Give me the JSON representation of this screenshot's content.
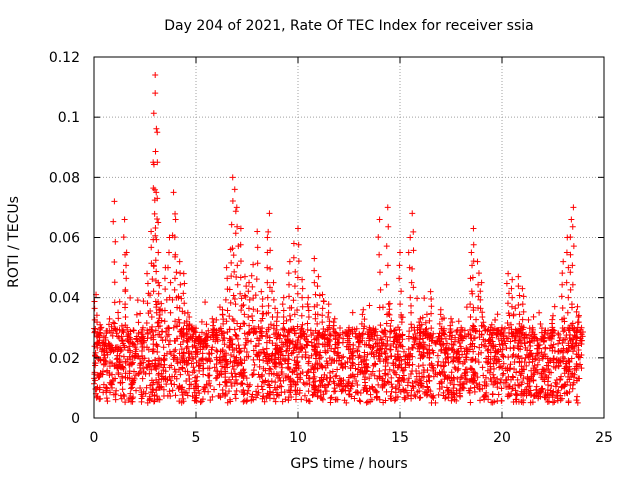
{
  "chart_data": {
    "type": "scatter",
    "title": "Day 204 of 2021, Rate Of TEC Index for receiver ssia",
    "xlabel": "GPS time / hours",
    "ylabel": "ROTI / TECUs",
    "xlim": [
      0,
      25
    ],
    "ylim": [
      0,
      0.12
    ],
    "xticks": [
      "0",
      "5",
      "10",
      "15",
      "20",
      "25"
    ],
    "yticks": [
      "0",
      "0.02",
      "0.04",
      "0.06",
      "0.08",
      "0.1",
      "0.12"
    ],
    "grid": true,
    "marker": "+",
    "color": "#ff0000",
    "series": [
      {
        "name": "ROTI",
        "x": [
          0.1,
          0.2,
          0.3,
          0.5,
          0.8,
          1.0,
          1.2,
          1.5,
          1.6,
          1.7,
          2.0,
          2.4,
          2.6,
          2.8,
          2.9,
          3.0,
          3.0,
          3.1,
          3.1,
          3.2,
          3.3,
          3.5,
          3.7,
          3.9,
          4.0,
          4.2,
          4.4,
          4.6,
          4.9,
          5.2,
          5.5,
          5.8,
          6.0,
          6.3,
          6.5,
          6.7,
          6.8,
          6.9,
          7.0,
          7.2,
          7.4,
          7.6,
          7.8,
          8.0,
          8.2,
          8.5,
          8.6,
          8.8,
          9.0,
          9.3,
          9.6,
          9.8,
          10.0,
          10.2,
          10.5,
          10.8,
          11.0,
          11.2,
          11.5,
          11.8,
          12.0,
          12.5,
          13.0,
          13.2,
          13.5,
          14.0,
          14.4,
          14.5,
          14.8,
          15.0,
          15.5,
          15.6,
          16.0,
          16.5,
          17.0,
          17.5,
          18.0,
          18.5,
          18.6,
          18.8,
          19.0,
          19.5,
          20.0,
          20.3,
          20.5,
          20.8,
          21.0,
          21.5,
          22.0,
          22.5,
          23.0,
          23.2,
          23.4,
          23.5,
          23.7,
          23.9
        ],
        "y": [
          0.041,
          0.025,
          0.031,
          0.018,
          0.022,
          0.072,
          0.015,
          0.066,
          0.055,
          0.028,
          0.02,
          0.03,
          0.048,
          0.062,
          0.085,
          0.108,
          0.114,
          0.095,
          0.073,
          0.044,
          0.038,
          0.05,
          0.06,
          0.075,
          0.066,
          0.052,
          0.048,
          0.035,
          0.03,
          0.026,
          0.028,
          0.033,
          0.029,
          0.036,
          0.05,
          0.056,
          0.08,
          0.076,
          0.07,
          0.063,
          0.047,
          0.045,
          0.051,
          0.062,
          0.042,
          0.06,
          0.068,
          0.045,
          0.035,
          0.04,
          0.052,
          0.058,
          0.063,
          0.046,
          0.04,
          0.053,
          0.047,
          0.041,
          0.035,
          0.033,
          0.025,
          0.03,
          0.028,
          0.036,
          0.03,
          0.066,
          0.07,
          0.038,
          0.028,
          0.055,
          0.06,
          0.068,
          0.033,
          0.042,
          0.036,
          0.033,
          0.03,
          0.055,
          0.063,
          0.052,
          0.045,
          0.031,
          0.03,
          0.048,
          0.046,
          0.047,
          0.043,
          0.03,
          0.027,
          0.034,
          0.052,
          0.06,
          0.066,
          0.07,
          0.037,
          0.03
        ]
      }
    ],
    "noise_floor_range": [
      0.005,
      0.03
    ]
  }
}
